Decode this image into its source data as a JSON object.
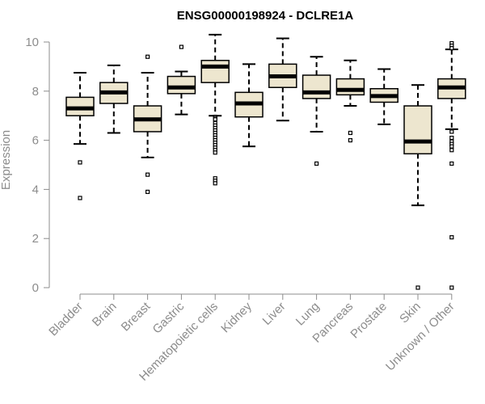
{
  "chart_data": {
    "type": "boxplot",
    "title": "ENSG00000198924 - DCLRE1A",
    "xlabel": "",
    "ylabel": "Expression",
    "ylim": [
      0,
      10
    ],
    "yticks": [
      0,
      2,
      4,
      6,
      8,
      10
    ],
    "colors": {
      "box_fill": "#ede6cf",
      "box_stroke": "#000000",
      "axis": "#8c8c8c",
      "title": "#000000"
    },
    "categories": [
      "Bladder",
      "Brain",
      "Breast",
      "Gastric",
      "Hematopoietic cells",
      "Kidney",
      "Liver",
      "Lung",
      "Pancreas",
      "Prostate",
      "Skin",
      "Unknown / Other"
    ],
    "boxes": [
      {
        "q1": 7.0,
        "median": 7.3,
        "q3": 7.75,
        "whisker_low": 5.85,
        "whisker_high": 8.75,
        "outliers": [
          5.1,
          3.65
        ]
      },
      {
        "q1": 7.5,
        "median": 7.95,
        "q3": 8.35,
        "whisker_low": 6.3,
        "whisker_high": 9.05,
        "outliers": []
      },
      {
        "q1": 6.35,
        "median": 6.85,
        "q3": 7.4,
        "whisker_low": 5.3,
        "whisker_high": 8.75,
        "outliers": [
          9.4,
          4.6,
          3.9
        ]
      },
      {
        "q1": 7.9,
        "median": 8.15,
        "q3": 8.6,
        "whisker_low": 7.05,
        "whisker_high": 8.8,
        "outliers": [
          9.8
        ]
      },
      {
        "q1": 8.35,
        "median": 9.0,
        "q3": 9.25,
        "whisker_low": 7.0,
        "whisker_high": 10.3,
        "outliers": [
          6.95,
          6.9,
          6.85,
          6.7,
          6.6,
          6.5,
          6.4,
          6.3,
          6.2,
          6.1,
          6.0,
          5.9,
          5.8,
          5.7,
          5.6,
          5.5,
          4.45,
          4.35,
          4.25
        ]
      },
      {
        "q1": 6.95,
        "median": 7.5,
        "q3": 7.95,
        "whisker_low": 5.75,
        "whisker_high": 9.1,
        "outliers": []
      },
      {
        "q1": 8.15,
        "median": 8.6,
        "q3": 9.1,
        "whisker_low": 6.8,
        "whisker_high": 10.15,
        "outliers": []
      },
      {
        "q1": 7.7,
        "median": 7.95,
        "q3": 8.65,
        "whisker_low": 6.35,
        "whisker_high": 9.4,
        "outliers": [
          5.05
        ]
      },
      {
        "q1": 7.85,
        "median": 8.05,
        "q3": 8.5,
        "whisker_low": 7.4,
        "whisker_high": 9.25,
        "outliers": [
          6.3,
          6.0
        ]
      },
      {
        "q1": 7.55,
        "median": 7.8,
        "q3": 8.1,
        "whisker_low": 6.65,
        "whisker_high": 8.9,
        "outliers": []
      },
      {
        "q1": 5.45,
        "median": 5.95,
        "q3": 7.4,
        "whisker_low": 3.35,
        "whisker_high": 8.25,
        "outliers": [
          0.0
        ]
      },
      {
        "q1": 7.7,
        "median": 8.15,
        "q3": 8.5,
        "whisker_low": 6.45,
        "whisker_high": 9.7,
        "outliers": [
          9.95,
          9.85,
          9.75,
          6.35,
          6.1,
          5.95,
          5.85,
          5.75,
          5.6,
          5.05,
          2.05,
          0.0
        ]
      }
    ]
  }
}
